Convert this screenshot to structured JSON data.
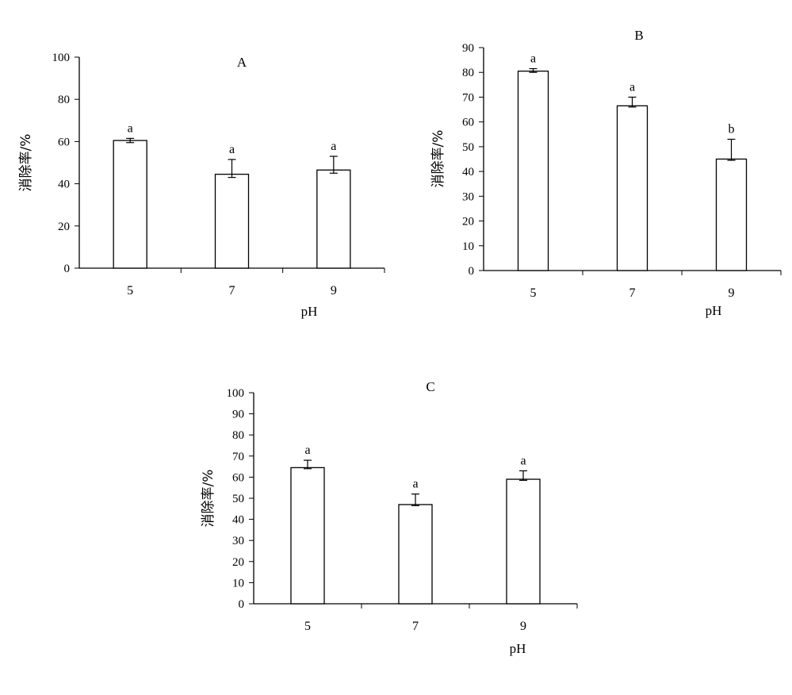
{
  "chart_data": [
    {
      "type": "bar",
      "title": "A",
      "xlabel": "pH",
      "ylabel": "消除率/%",
      "categories": [
        "5",
        "7",
        "9"
      ],
      "values": [
        60.5,
        44.5,
        46.5
      ],
      "error_plus": [
        1,
        7,
        6.5
      ],
      "error_minus": [
        1,
        1.5,
        1.5
      ],
      "significance": [
        "a",
        "a",
        "a"
      ],
      "ylim": [
        0,
        100
      ],
      "yticks": [
        "0",
        "20",
        "40",
        "60",
        "80",
        "100"
      ],
      "grid": false,
      "legend": "none"
    },
    {
      "type": "bar",
      "title": "B",
      "xlabel": "pH",
      "ylabel": "消除率/%",
      "categories": [
        "5",
        "7",
        "9"
      ],
      "values": [
        80.5,
        66.5,
        45
      ],
      "error_plus": [
        1,
        3.5,
        8
      ],
      "error_minus": [
        0.5,
        0.5,
        0.5
      ],
      "significance": [
        "a",
        "a",
        "b"
      ],
      "ylim": [
        0,
        90
      ],
      "yticks": [
        "0",
        "10",
        "20",
        "30",
        "40",
        "50",
        "60",
        "70",
        "80",
        "90"
      ],
      "grid": false,
      "legend": "none"
    },
    {
      "type": "bar",
      "title": "C",
      "xlabel": "pH",
      "ylabel": "消除率/%",
      "categories": [
        "5",
        "7",
        "9"
      ],
      "values": [
        64.5,
        47,
        59
      ],
      "error_plus": [
        3.5,
        5,
        4
      ],
      "error_minus": [
        0.5,
        0.5,
        0.5
      ],
      "significance": [
        "a",
        "a",
        "a"
      ],
      "ylim": [
        0,
        100
      ],
      "yticks": [
        "0",
        "10",
        "20",
        "30",
        "40",
        "50",
        "60",
        "70",
        "80",
        "90",
        "100"
      ],
      "grid": false,
      "legend": "none"
    }
  ]
}
